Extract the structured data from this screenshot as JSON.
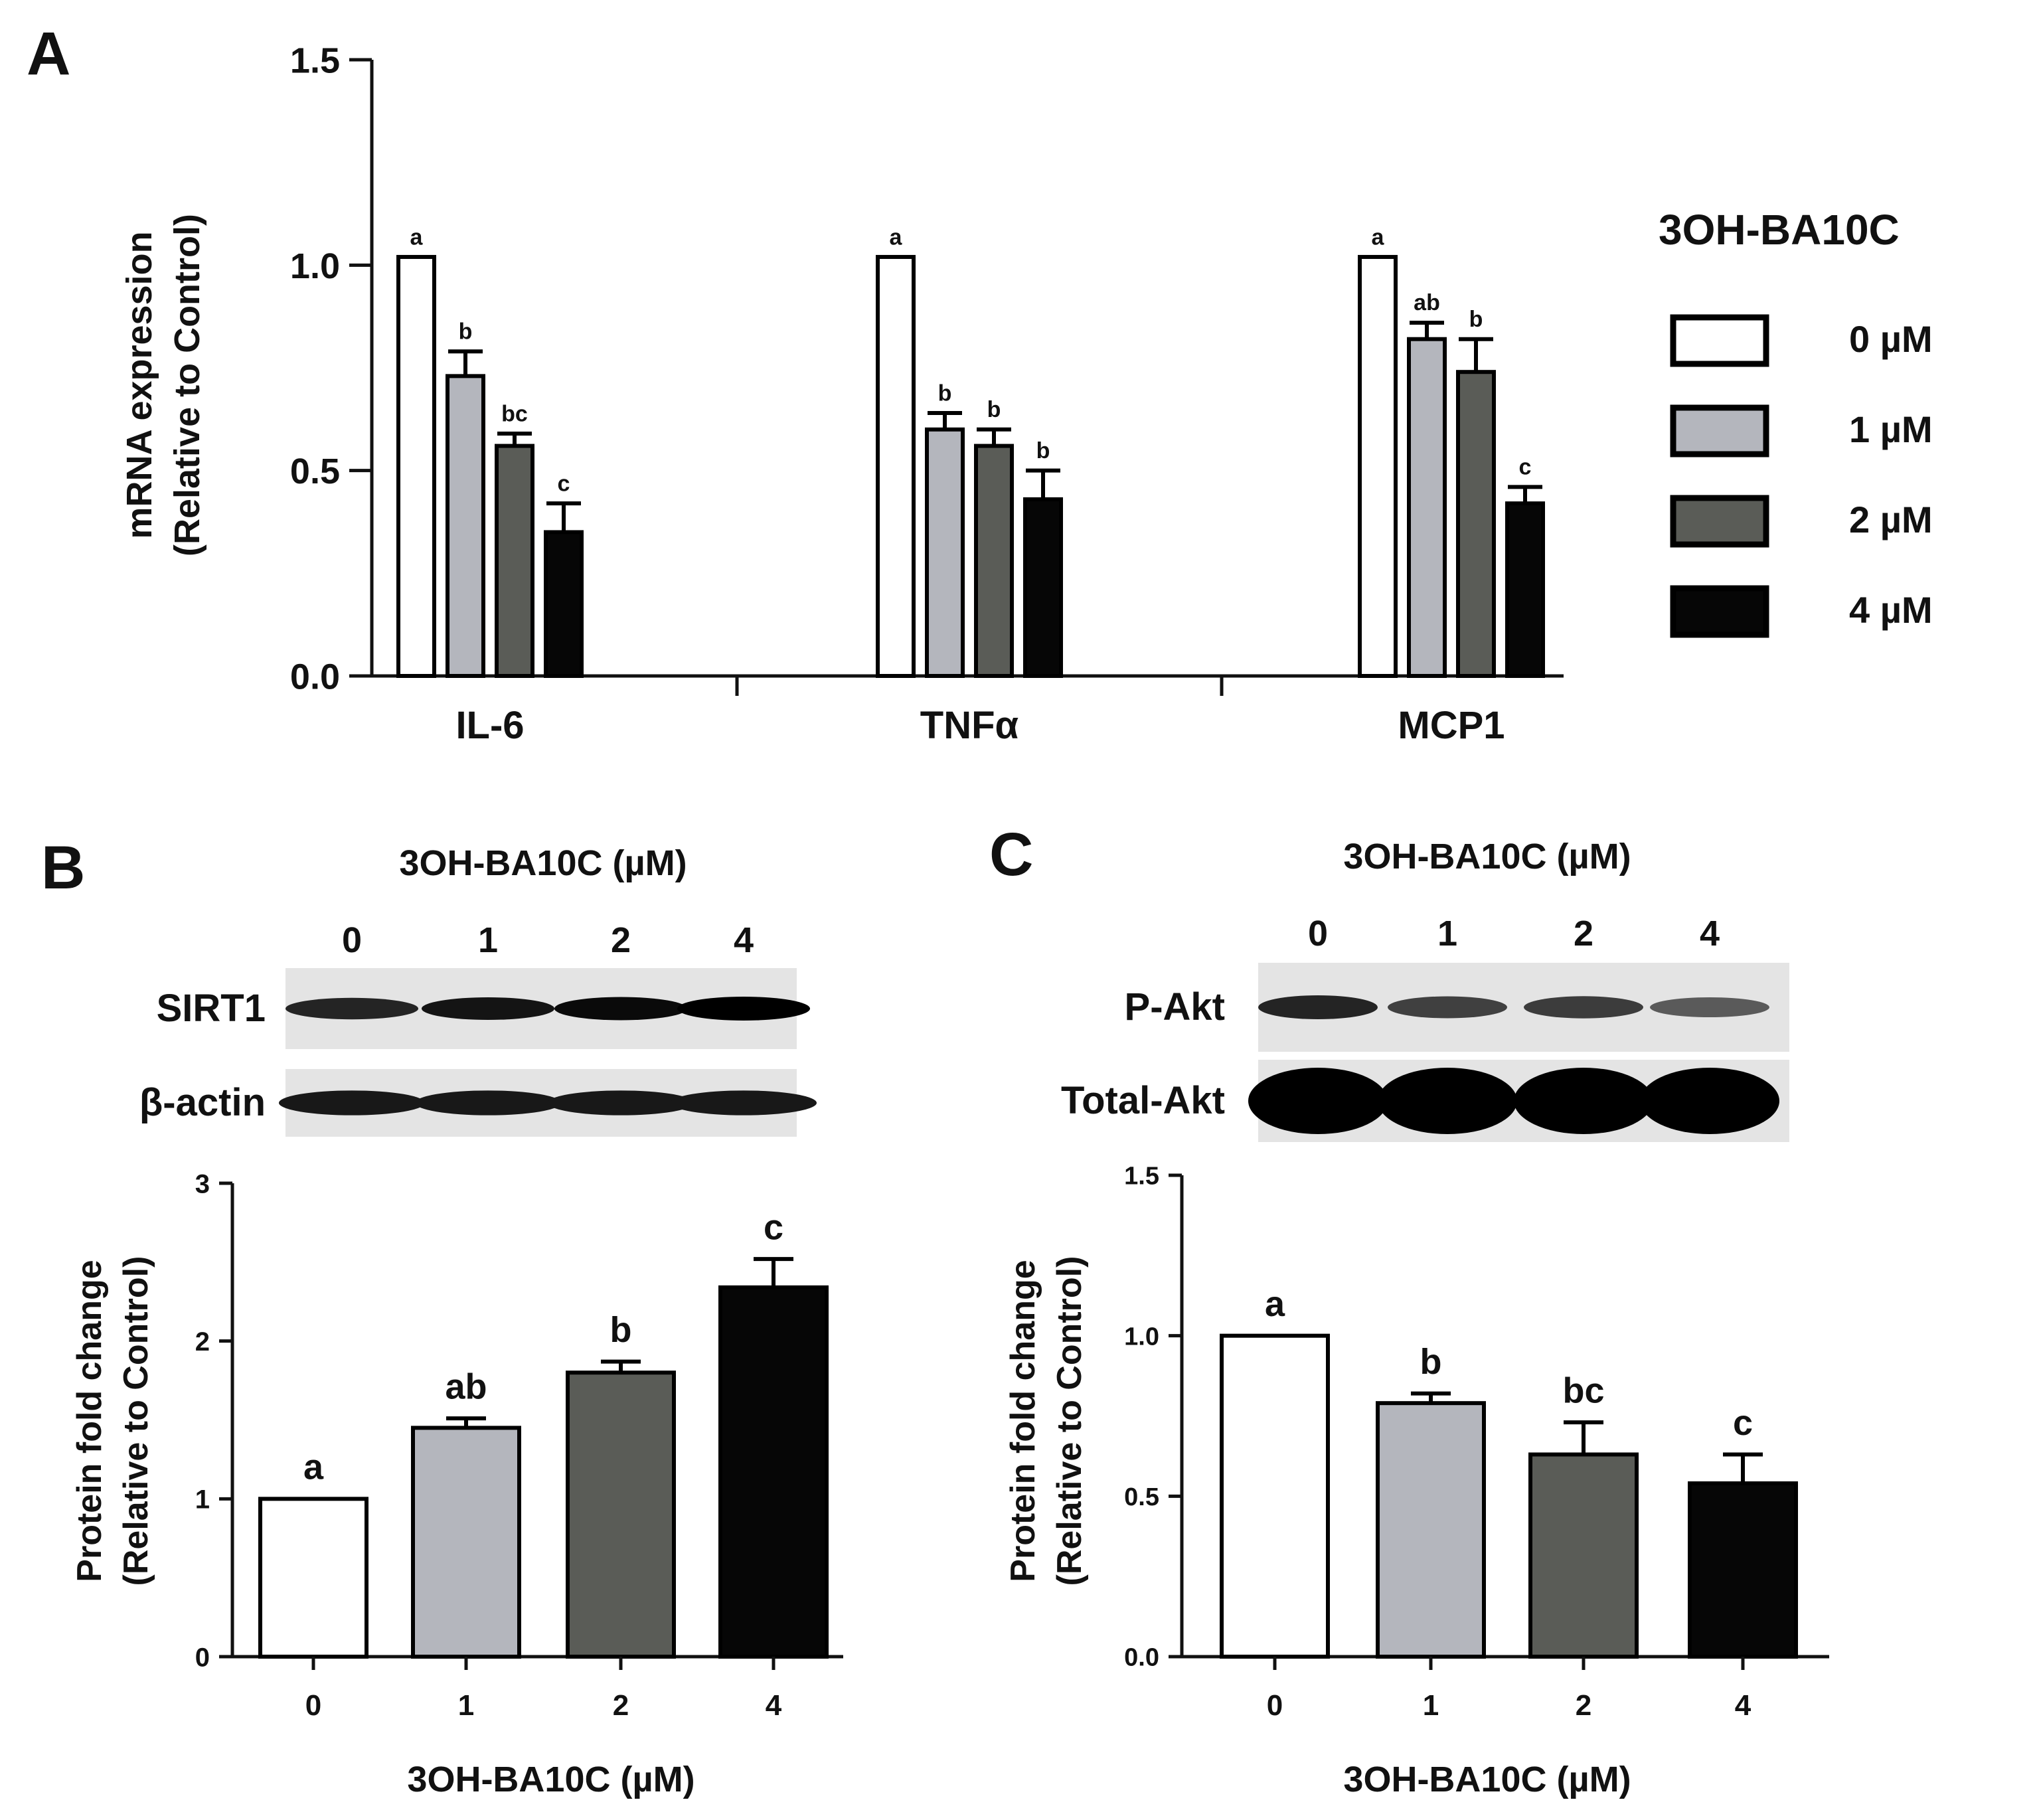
{
  "panel_labels": {
    "a": "A",
    "b": "B",
    "c": "C"
  },
  "legend": {
    "title": "3OH-BA10C",
    "items": [
      "0 µM",
      "1 µM",
      "2 µM",
      "4 µM"
    ]
  },
  "series_colors": [
    "#ffffff",
    "#b4b6bd",
    "#5a5c57",
    "#060606"
  ],
  "blot_b": {
    "title": "3OH-BA10C (µM)",
    "lanes": [
      "0",
      "1",
      "2",
      "4"
    ],
    "rows": [
      "SIRT1",
      "β-actin"
    ],
    "band_intensity": {
      "SIRT1": [
        0.82,
        0.9,
        0.95,
        1.0
      ],
      "β-actin": [
        0.88,
        0.88,
        0.88,
        0.88
      ]
    }
  },
  "blot_c": {
    "title": "3OH-BA10C (µM)",
    "lanes": [
      "0",
      "1",
      "2",
      "4"
    ],
    "rows": [
      "P-Akt",
      "Total-Akt"
    ],
    "band_intensity": {
      "P-Akt": [
        0.82,
        0.68,
        0.7,
        0.55
      ],
      "Total-Akt": [
        1.0,
        1.0,
        1.0,
        1.0
      ]
    }
  },
  "chart_data": [
    {
      "id": "A",
      "type": "bar",
      "ylabel": "mRNA expression",
      "ylabel2": "(Relative to Control)",
      "ylim": [
        0,
        1.5
      ],
      "yticks": [
        "0.0",
        "0.5",
        "1.0",
        "1.5"
      ],
      "categories": [
        "IL-6",
        "TNFα",
        "MCP1"
      ],
      "series": [
        {
          "name": "0 µM",
          "values": [
            1.02,
            1.02,
            1.02
          ],
          "errors": [
            0,
            0,
            0
          ],
          "letters": [
            "a",
            "a",
            "a"
          ]
        },
        {
          "name": "1 µM",
          "values": [
            0.73,
            0.6,
            0.82
          ],
          "errors": [
            0.06,
            0.04,
            0.04
          ],
          "letters": [
            "b",
            "b",
            "ab"
          ]
        },
        {
          "name": "2 µM",
          "values": [
            0.56,
            0.56,
            0.74
          ],
          "errors": [
            0.03,
            0.04,
            0.08
          ],
          "letters": [
            "bc",
            "b",
            "b"
          ]
        },
        {
          "name": "4 µM",
          "values": [
            0.35,
            0.43,
            0.42
          ],
          "errors": [
            0.07,
            0.07,
            0.04
          ],
          "letters": [
            "c",
            "b",
            "c"
          ]
        }
      ],
      "legend_position": "right"
    },
    {
      "id": "B",
      "type": "bar",
      "xlabel": "3OH-BA10C (µM)",
      "ylabel": "Protein fold change",
      "ylabel2": "(Relative to Control)",
      "ylim": [
        0,
        3
      ],
      "yticks": [
        "0",
        "1",
        "2",
        "3"
      ],
      "categories": [
        "0",
        "1",
        "2",
        "4"
      ],
      "values": [
        1.0,
        1.45,
        1.8,
        2.34
      ],
      "errors": [
        0,
        0.06,
        0.07,
        0.18
      ],
      "letters": [
        "a",
        "ab",
        "b",
        "c"
      ]
    },
    {
      "id": "C",
      "type": "bar",
      "xlabel": "3OH-BA10C (µM)",
      "ylabel": "Protein fold change",
      "ylabel2": "(Relative to Control)",
      "ylim": [
        0,
        1.5
      ],
      "yticks": [
        "0.0",
        "0.5",
        "1.0",
        "1.5"
      ],
      "categories": [
        "0",
        "1",
        "2",
        "4"
      ],
      "values": [
        1.0,
        0.79,
        0.63,
        0.54
      ],
      "errors": [
        0,
        0.03,
        0.1,
        0.09
      ],
      "letters": [
        "a",
        "b",
        "bc",
        "c"
      ]
    }
  ]
}
